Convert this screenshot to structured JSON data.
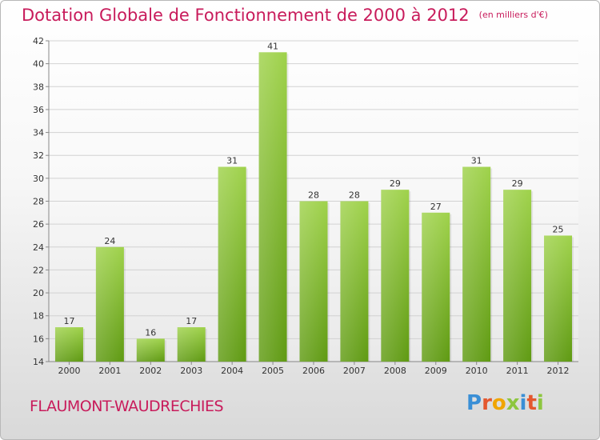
{
  "chart_data": {
    "type": "bar",
    "title": "Dotation Globale de Fonctionnement de 2000 à 2012",
    "subtitle": "(en milliers d'€)",
    "categories": [
      "2000",
      "2001",
      "2002",
      "2003",
      "2004",
      "2005",
      "2006",
      "2007",
      "2008",
      "2009",
      "2010",
      "2011",
      "2012"
    ],
    "values": [
      17,
      24,
      16,
      17,
      31,
      41,
      28,
      28,
      29,
      27,
      31,
      29,
      25
    ],
    "ylim": [
      14,
      42
    ],
    "yticks": [
      14,
      16,
      18,
      20,
      22,
      24,
      26,
      28,
      30,
      32,
      34,
      36,
      38,
      40,
      42
    ],
    "grid": true,
    "bar_color": "#7fba2a",
    "title_color": "#c81b5b"
  },
  "commune": "FLAUMONT-WAUDRECHIES",
  "logo": {
    "letters": [
      "P",
      "r",
      "o",
      "x",
      "i",
      "t",
      "i"
    ]
  }
}
